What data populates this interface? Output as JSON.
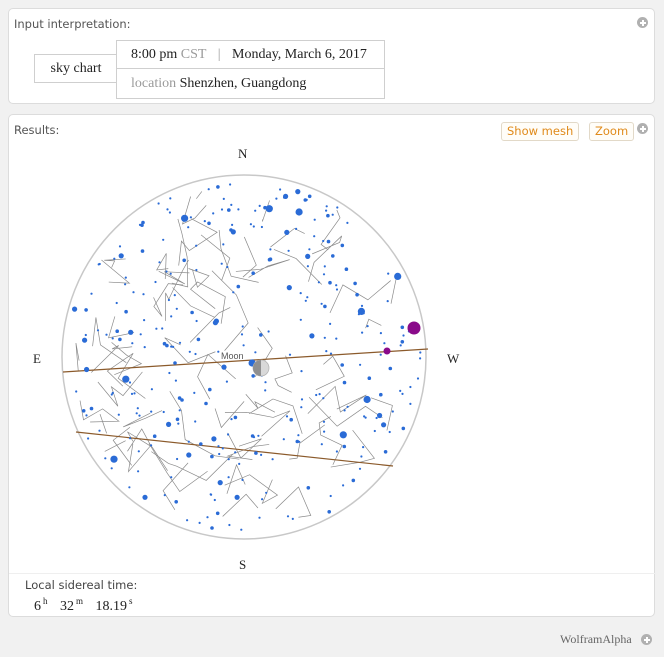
{
  "input_pod": {
    "title": "Input interpretation:",
    "query": "sky chart",
    "time": "8:00 pm",
    "tz": "CST",
    "separator": "|",
    "date": "Monday, March 6, 2017",
    "location_label": "location",
    "location": "Shenzhen, Guangdong"
  },
  "results_pod": {
    "title": "Results:",
    "show_mesh": "Show mesh",
    "zoom": "Zoom",
    "compass": {
      "north": "N",
      "south": "S",
      "east": "E",
      "west": "W"
    },
    "moon_label": "Moon"
  },
  "sidereal": {
    "label": "Local sidereal time:",
    "hours": "6",
    "h_unit": "h",
    "minutes": "32",
    "m_unit": "m",
    "seconds": "18.19",
    "s_unit": "s"
  },
  "footer": {
    "brand": "WolframAlpha"
  },
  "colors": {
    "star": "#2a6bd6",
    "constellation_line": "#8a8a8a",
    "ecliptic": "#8b5a2b",
    "planet": "#8a0a8a",
    "accent": "#e08a1a"
  }
}
